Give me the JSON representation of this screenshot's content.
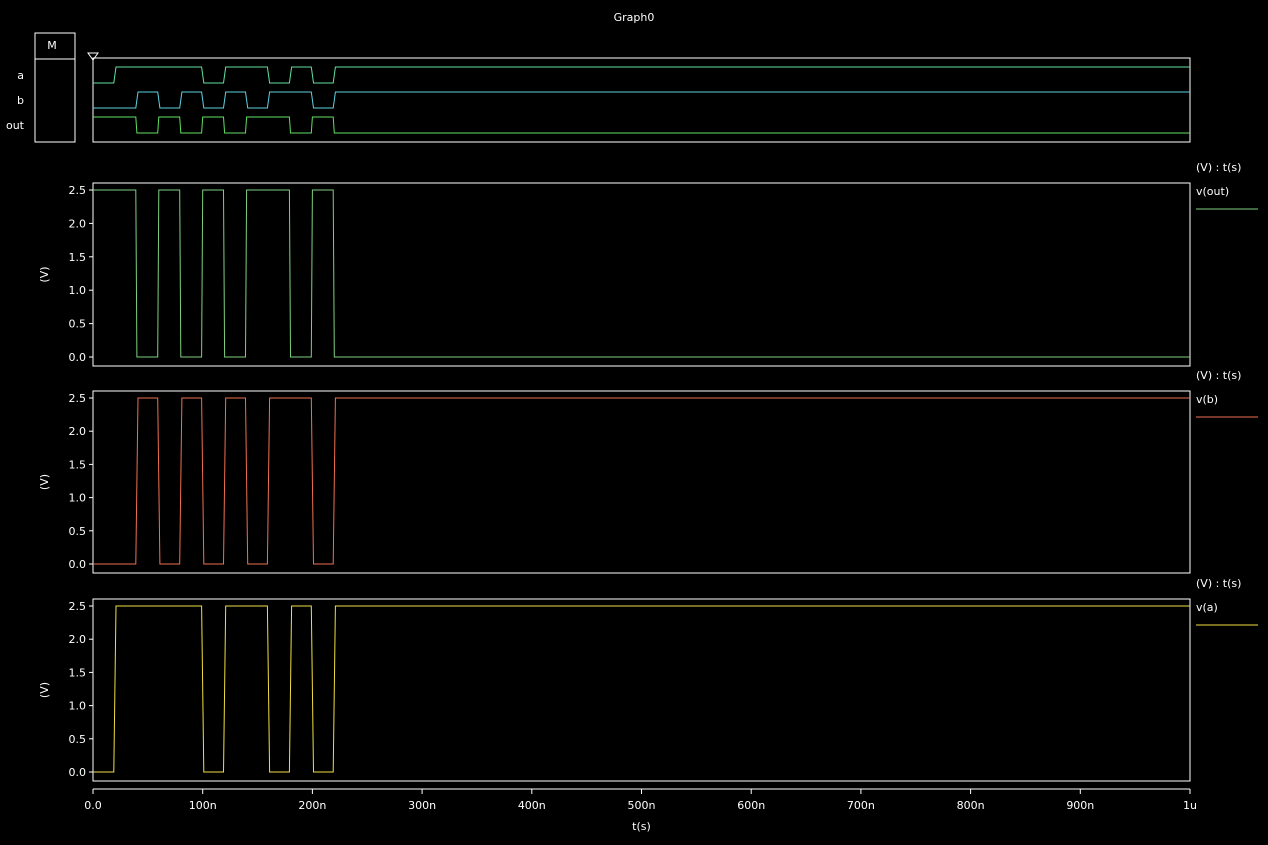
{
  "title": "Graph0",
  "digital": {
    "marker_label": "M",
    "signals": [
      "a",
      "b",
      "out"
    ]
  },
  "x_axis": {
    "label": "t(s)",
    "min": 0,
    "max": 1000,
    "ticks": [
      {
        "v": 0,
        "label": "0.0"
      },
      {
        "v": 100,
        "label": "100n"
      },
      {
        "v": 200,
        "label": "200n"
      },
      {
        "v": 300,
        "label": "300n"
      },
      {
        "v": 400,
        "label": "400n"
      },
      {
        "v": 500,
        "label": "500n"
      },
      {
        "v": 600,
        "label": "600n"
      },
      {
        "v": 700,
        "label": "700n"
      },
      {
        "v": 800,
        "label": "800n"
      },
      {
        "v": 900,
        "label": "900n"
      },
      {
        "v": 1000,
        "label": "1u"
      }
    ]
  },
  "y_ticks": [
    "0.0",
    "0.5",
    "1.0",
    "1.5",
    "2.0",
    "2.5"
  ],
  "chart_data": [
    {
      "type": "line",
      "header": "(V) : t(s)",
      "ylabel": "(V)",
      "ylim": [
        0,
        2.5
      ],
      "xlim": [
        0,
        1000
      ],
      "series": [
        {
          "name": "v(out)",
          "color": "#7fd07f",
          "x": [
            0,
            39,
            40,
            59,
            60,
            79,
            80,
            99,
            100,
            119,
            120,
            139,
            140,
            159,
            160,
            179,
            180,
            199,
            200,
            219,
            220,
            1000
          ],
          "y": [
            2.5,
            2.5,
            0,
            0,
            2.5,
            2.5,
            0,
            0,
            2.5,
            2.5,
            0,
            0,
            2.5,
            2.5,
            2.5,
            2.5,
            0,
            0,
            2.5,
            2.5,
            0,
            0
          ]
        }
      ]
    },
    {
      "type": "line",
      "header": "(V) : t(s)",
      "ylabel": "(V)",
      "ylim": [
        0,
        2.5
      ],
      "xlim": [
        0,
        1000
      ],
      "series": [
        {
          "name": "v(b)",
          "color": "#f07050",
          "x": [
            0,
            39,
            41,
            59,
            61,
            79,
            81,
            99,
            101,
            119,
            121,
            139,
            141,
            159,
            161,
            199,
            201,
            219,
            221,
            1000
          ],
          "y": [
            0,
            0,
            2.5,
            2.5,
            0,
            0,
            2.5,
            2.5,
            0,
            0,
            2.5,
            2.5,
            0,
            0,
            2.5,
            2.5,
            0,
            0,
            2.5,
            2.5
          ]
        }
      ]
    },
    {
      "type": "line",
      "header": "(V) : t(s)",
      "ylabel": "(V)",
      "ylim": [
        0,
        2.5
      ],
      "xlim": [
        0,
        1000
      ],
      "series": [
        {
          "name": "v(a)",
          "color": "#f0e040",
          "x": [
            0,
            19,
            21,
            99,
            101,
            119,
            121,
            159,
            161,
            179,
            181,
            199,
            201,
            219,
            221,
            1000
          ],
          "y": [
            0,
            0,
            2.5,
            2.5,
            0,
            0,
            2.5,
            2.5,
            0,
            0,
            2.5,
            2.5,
            0,
            0,
            2.5,
            2.5
          ]
        }
      ]
    }
  ],
  "digital_colors": {
    "a": "#60e0a0",
    "b": "#60d0e0",
    "out": "#60e060"
  }
}
